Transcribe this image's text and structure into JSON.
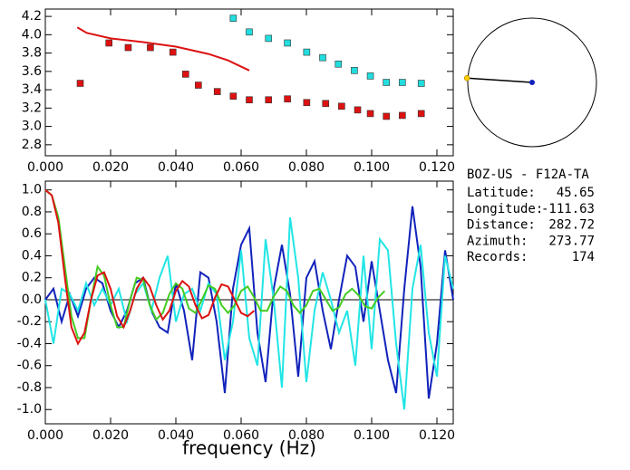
{
  "chart_data": [
    {
      "type": "scatter",
      "xlim": [
        0,
        0.125
      ],
      "ylim": [
        2.68,
        4.28
      ],
      "xticks": [
        {
          "value": 0,
          "label": "0.000"
        },
        {
          "value": 0.02,
          "label": "0.020"
        },
        {
          "value": 0.04,
          "label": "0.040"
        },
        {
          "value": 0.06,
          "label": "0.060"
        },
        {
          "value": 0.08,
          "label": "0.080"
        },
        {
          "value": 0.1,
          "label": "0.100"
        },
        {
          "value": 0.12,
          "label": "0.120"
        }
      ],
      "yticks": [
        4.2,
        {
          "value": 4,
          "label": "4.0"
        },
        3.8,
        3.6,
        3.4,
        3.2,
        {
          "value": 3,
          "label": "3.0"
        },
        2.8
      ],
      "series": [
        {
          "type": "scatter",
          "color": "#dd1111",
          "x": [
            0.0107,
            0.0195,
            0.0254,
            0.0322,
            0.0391,
            0.043,
            0.0469,
            0.0527,
            0.0576,
            0.0625,
            0.0684,
            0.0742,
            0.0801,
            0.0859,
            0.0908,
            0.0957,
            0.0996,
            0.1045,
            0.1094,
            0.1152
          ],
          "values": [
            3.47,
            3.91,
            3.86,
            3.86,
            3.81,
            3.57,
            3.45,
            3.38,
            3.33,
            3.29,
            3.29,
            3.3,
            3.26,
            3.25,
            3.22,
            3.18,
            3.14,
            3.11,
            3.12,
            3.14
          ]
        },
        {
          "type": "scatter",
          "color": "#22dddd",
          "x": [
            0.0576,
            0.0625,
            0.0684,
            0.0742,
            0.0801,
            0.085,
            0.0898,
            0.0947,
            0.0996,
            0.1045,
            0.1094,
            0.1152
          ],
          "values": [
            4.18,
            4.03,
            3.96,
            3.91,
            3.81,
            3.75,
            3.68,
            3.61,
            3.55,
            3.48,
            3.48,
            3.47
          ]
        },
        {
          "type": "line",
          "color": "#dd1111",
          "x": [
            0.0098,
            0.0127,
            0.02,
            0.03,
            0.04,
            0.05,
            0.056,
            0.0625
          ],
          "values": [
            4.08,
            4.02,
            3.96,
            3.92,
            3.87,
            3.79,
            3.72,
            3.61
          ]
        }
      ]
    },
    {
      "type": "line",
      "x_label": "frequency (Hz)",
      "xlim": [
        0,
        0.125
      ],
      "ylim": [
        -1.13,
        1.08
      ],
      "hline": 0,
      "xticks": [
        {
          "value": 0,
          "label": "0.000"
        },
        {
          "value": 0.02,
          "label": "0.020"
        },
        {
          "value": 0.04,
          "label": "0.040"
        },
        {
          "value": 0.06,
          "label": "0.060"
        },
        {
          "value": 0.08,
          "label": "0.080"
        },
        {
          "value": 0.1,
          "label": "0.100"
        },
        {
          "value": 0.12,
          "label": "0.120"
        }
      ],
      "yticks": [
        {
          "value": 1,
          "label": "1.0"
        },
        0.8,
        0.6,
        0.4,
        0.2,
        {
          "value": 0,
          "label": "0.0"
        },
        -0.2,
        -0.4,
        -0.6,
        -0.8,
        {
          "value": -1,
          "label": "-1.0"
        }
      ],
      "series": [
        {
          "color": "#1122bb",
          "x": [
            0,
            0.0025,
            0.005,
            0.0075,
            0.01,
            0.0125,
            0.015,
            0.0175,
            0.02,
            0.0225,
            0.025,
            0.0275,
            0.03,
            0.0325,
            0.035,
            0.0375,
            0.04,
            0.0425,
            0.045,
            0.0475,
            0.05,
            0.0525,
            0.055,
            0.0575,
            0.06,
            0.0625,
            0.065,
            0.0675,
            0.07,
            0.0725,
            0.075,
            0.0775,
            0.08,
            0.0825,
            0.085,
            0.0875,
            0.09,
            0.0925,
            0.095,
            0.0975,
            0.1,
            0.1025,
            0.105,
            0.1075,
            0.11,
            0.1125,
            0.115,
            0.1175,
            0.12,
            0.1225,
            0.125
          ],
          "values": [
            0,
            0.1,
            -0.2,
            0.05,
            -0.15,
            0.1,
            0.2,
            0.15,
            -0.1,
            -0.25,
            -0.1,
            0.15,
            0.2,
            -0.1,
            -0.25,
            -0.3,
            0.15,
            -0.1,
            -0.55,
            0.25,
            0.2,
            -0.2,
            -0.85,
            0.1,
            0.5,
            0.65,
            -0.3,
            -0.75,
            0.1,
            0.5,
            0.05,
            -0.7,
            0.2,
            0.35,
            -0.1,
            -0.45,
            0,
            0.4,
            0.3,
            -0.2,
            0.35,
            -0.1,
            -0.55,
            -0.85,
            0.1,
            0.85,
            0.3,
            -0.9,
            -0.4,
            0.45,
            0
          ]
        },
        {
          "color": "#22e5e5",
          "x": [
            0,
            0.0025,
            0.005,
            0.0075,
            0.01,
            0.0125,
            0.015,
            0.0175,
            0.02,
            0.0225,
            0.025,
            0.0275,
            0.03,
            0.0325,
            0.035,
            0.0375,
            0.04,
            0.0425,
            0.045,
            0.0475,
            0.05,
            0.0525,
            0.055,
            0.0575,
            0.06,
            0.0625,
            0.065,
            0.0675,
            0.07,
            0.0725,
            0.075,
            0.0775,
            0.08,
            0.0825,
            0.085,
            0.0875,
            0.09,
            0.0925,
            0.095,
            0.0975,
            0.1,
            0.1025,
            0.105,
            0.1075,
            0.11,
            0.1125,
            0.115,
            0.1175,
            0.12,
            0.1225,
            0.125
          ],
          "values": [
            0,
            -0.4,
            0.1,
            0.05,
            -0.1,
            0.15,
            -0.05,
            0.1,
            -0.05,
            0.1,
            -0.2,
            0.05,
            0.15,
            -0.1,
            0.2,
            0.4,
            -0.2,
            0.05,
            0.1,
            -0.1,
            0.15,
            0.05,
            -0.55,
            -0.2,
            0.45,
            -0.35,
            -0.6,
            0.55,
            0,
            -0.8,
            0.75,
            0.2,
            -0.75,
            -0.1,
            0.25,
            0,
            -0.3,
            -0.1,
            -0.6,
            0.4,
            -0.45,
            0.55,
            0.45,
            -0.4,
            -1,
            0.1,
            0.5,
            -0.3,
            -0.7,
            0.4,
            0.1
          ]
        },
        {
          "color": "#44cc22",
          "x": [
            0,
            0.002,
            0.004,
            0.006,
            0.008,
            0.01,
            0.012,
            0.014,
            0.016,
            0.018,
            0.02,
            0.022,
            0.024,
            0.026,
            0.028,
            0.03,
            0.032,
            0.034,
            0.036,
            0.038,
            0.04,
            0.042,
            0.044,
            0.046,
            0.048,
            0.05,
            0.052,
            0.054,
            0.056,
            0.058,
            0.06,
            0.062,
            0.064,
            0.066,
            0.068,
            0.07,
            0.072,
            0.074,
            0.076,
            0.078,
            0.08,
            0.082,
            0.084,
            0.086,
            0.088,
            0.09,
            0.092,
            0.094,
            0.096,
            0.098,
            0.1,
            0.102,
            0.104
          ],
          "values": [
            1,
            0.95,
            0.75,
            0.3,
            -0.15,
            -0.35,
            -0.35,
            0,
            0.3,
            0.22,
            -0.05,
            -0.25,
            -0.25,
            0,
            0.2,
            0.18,
            -0.05,
            -0.18,
            -0.12,
            0.05,
            0.15,
            0.1,
            -0.08,
            -0.12,
            0,
            0.13,
            0.1,
            -0.05,
            -0.12,
            -0.05,
            0.08,
            0.12,
            0.02,
            -0.1,
            -0.1,
            0.03,
            0.12,
            0.08,
            -0.05,
            -0.12,
            -0.05,
            0.08,
            0.1,
            0,
            -0.1,
            -0.07,
            0.05,
            0.1,
            0.04,
            -0.06,
            -0.08,
            0.02,
            0.08
          ]
        },
        {
          "color": "#dd1111",
          "x": [
            0,
            0.002,
            0.004,
            0.006,
            0.008,
            0.01,
            0.012,
            0.014,
            0.016,
            0.018,
            0.02,
            0.022,
            0.024,
            0.026,
            0.028,
            0.03,
            0.032,
            0.034,
            0.036,
            0.038,
            0.04,
            0.042,
            0.044,
            0.046,
            0.048,
            0.05,
            0.052,
            0.054,
            0.056,
            0.058,
            0.06,
            0.062,
            0.064
          ],
          "values": [
            1,
            0.95,
            0.7,
            0.2,
            -0.25,
            -0.4,
            -0.3,
            0,
            0.22,
            0.25,
            0.1,
            -0.15,
            -0.25,
            -0.1,
            0.1,
            0.2,
            0.12,
            -0.05,
            -0.18,
            -0.1,
            0.08,
            0.17,
            0.12,
            -0.05,
            -0.17,
            -0.14,
            0.02,
            0.14,
            0.12,
            0,
            -0.12,
            -0.15,
            -0.1
          ]
        }
      ]
    }
  ],
  "station": {
    "name": "BOZ-US - F12A-TA",
    "rows": [
      {
        "label": "Latitude:",
        "value": 45.65
      },
      {
        "label": "Longitude:",
        "value": -111.63
      },
      {
        "label": "Distance:",
        "value": 282.72
      },
      {
        "label": "Azimuth:",
        "value": 273.77
      },
      {
        "label": "Records:",
        "value": 174
      }
    ]
  }
}
